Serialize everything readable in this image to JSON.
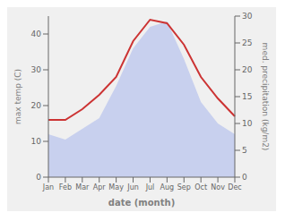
{
  "chart_data": {
    "type": "line",
    "xlabel": "date (month)",
    "ylabel": "max temp (C)",
    "y2label": "med. precipitation (kg/m2)",
    "categories": [
      "Jan",
      "Feb",
      "Mar",
      "Apr",
      "May",
      "Jun",
      "Jul",
      "Aug",
      "Sep",
      "Oct",
      "Nov",
      "Dec"
    ],
    "series": [
      {
        "type": "area",
        "axis": "y2",
        "color": "#c8d0ee",
        "values": [
          8,
          7,
          9,
          11,
          17,
          24,
          28,
          29,
          22,
          14,
          10,
          8
        ]
      },
      {
        "type": "line",
        "axis": "y",
        "color": "#cc3333",
        "values": [
          16,
          16,
          19,
          23,
          28,
          38,
          44,
          43,
          37,
          28,
          22,
          17
        ]
      }
    ],
    "ylim": [
      0,
      45
    ],
    "yticks": [
      0,
      10,
      20,
      30,
      40
    ],
    "y2lim": [
      0,
      30
    ],
    "y2ticks": [
      0,
      5,
      10,
      15,
      20,
      25,
      30
    ],
    "grid": false
  }
}
